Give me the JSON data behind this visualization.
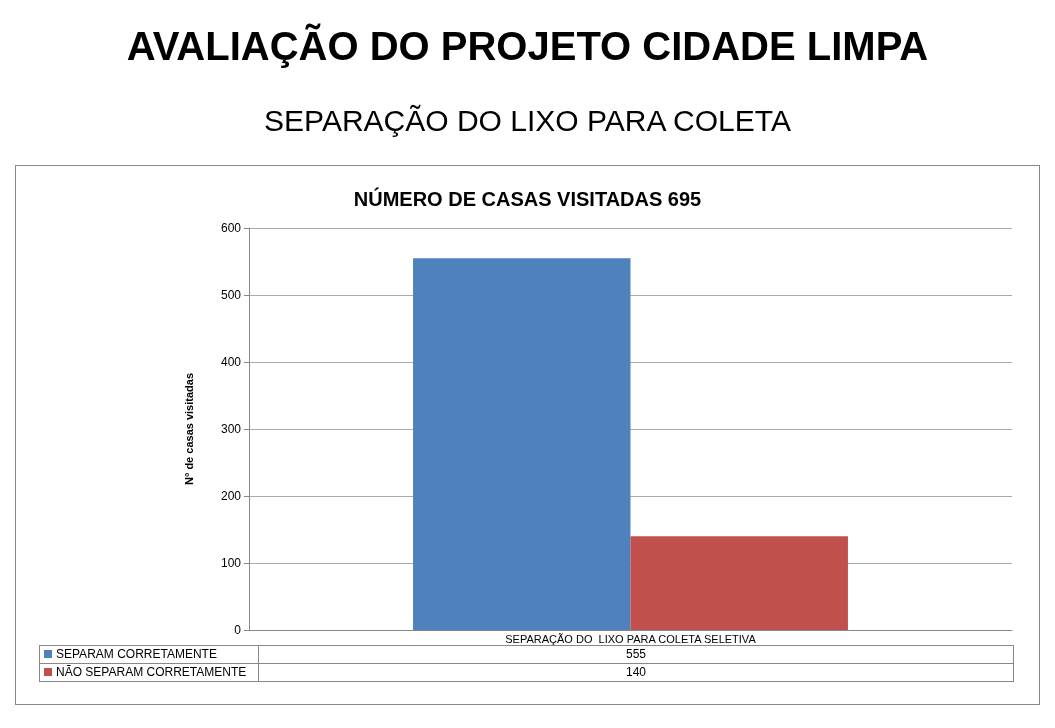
{
  "chart_data": {
    "type": "bar",
    "title": "AVALIAÇÃO DO PROJETO CIDADE LIMPA",
    "subtitle": "SEPARAÇÃO DO LIXO PARA COLETA",
    "annotations": [
      "NÚMERO DE CASAS VISITADAS 695"
    ],
    "ylabel": "N° de casas visitadas",
    "categories": [
      "SEPARAÇÃO DO  LIXO PARA COLETA SELETIVA"
    ],
    "series": [
      {
        "name": "SEPARAM CORRETAMENTE",
        "color": "#4f81bd",
        "values": [
          555
        ]
      },
      {
        "name": "NÃO SEPARAM CORRETAMENTE",
        "color": "#c0504d",
        "values": [
          140
        ]
      }
    ],
    "ylim": [
      0,
      600
    ],
    "yticks": [
      0,
      100,
      200,
      300,
      400,
      500,
      600
    ],
    "grid": "y",
    "data_labels": true,
    "legend": "bottom"
  }
}
